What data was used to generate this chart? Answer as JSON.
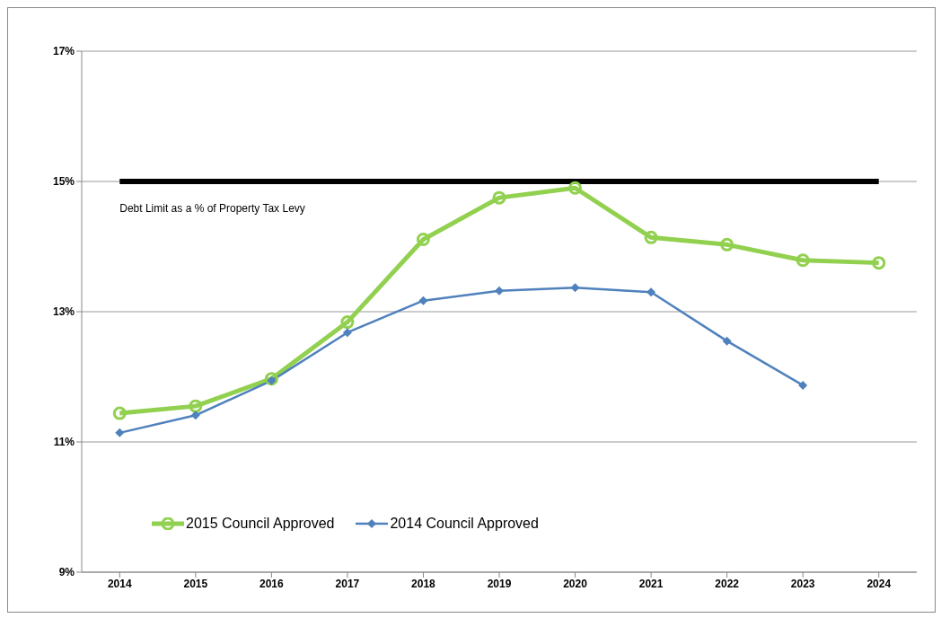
{
  "chart_data": {
    "type": "line",
    "categories": [
      "2014",
      "2015",
      "2016",
      "2017",
      "2018",
      "2019",
      "2020",
      "2021",
      "2022",
      "2023",
      "2024"
    ],
    "series": [
      {
        "name": "2015 Council Approved",
        "color": "#92d050",
        "marker": "circle",
        "values": [
          11.44,
          11.55,
          11.97,
          12.84,
          14.11,
          14.75,
          14.9,
          14.14,
          14.03,
          13.79,
          13.75
        ]
      },
      {
        "name": "2014 Council Approved",
        "color": "#4f81bd",
        "marker": "diamond",
        "values": [
          11.14,
          11.41,
          11.94,
          12.68,
          13.17,
          13.32,
          13.37,
          13.3,
          12.55,
          11.87,
          null
        ]
      }
    ],
    "ylim": [
      9,
      17
    ],
    "yticks": [
      {
        "value": 9,
        "label": "9%"
      },
      {
        "value": 11,
        "label": "11%"
      },
      {
        "value": 13,
        "label": "13%"
      },
      {
        "value": 15,
        "label": "15%"
      },
      {
        "value": 17,
        "label": "17%"
      }
    ],
    "grid": "y",
    "legend": "bottom left",
    "ref_lines": [
      {
        "axis": "y",
        "value": 15,
        "label": "Debt Limit as a % of  Property Tax Levy",
        "color": "#000000"
      }
    ]
  }
}
